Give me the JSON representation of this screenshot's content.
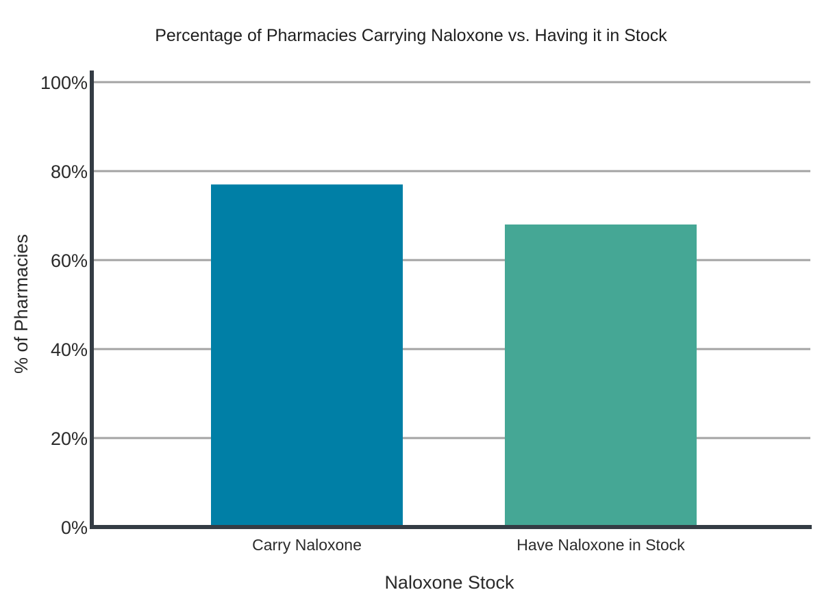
{
  "chart_data": {
    "type": "bar",
    "title": "Percentage of Pharmacies Carrying Naloxone vs. Having it in Stock",
    "xlabel": "Naloxone Stock",
    "ylabel": "% of Pharmacies",
    "categories": [
      "Carry Naloxone",
      "Have Naloxone in Stock"
    ],
    "values": [
      77,
      68
    ],
    "unit": "%",
    "ylim": [
      0,
      100
    ],
    "yticks": [
      0,
      20,
      40,
      60,
      80,
      100
    ],
    "ytick_labels": [
      "0%",
      "20%",
      "40%",
      "60%",
      "80%",
      "100%"
    ],
    "bar_colors": [
      "#007fa6",
      "#45a795"
    ],
    "grid": true,
    "legend": "none"
  }
}
